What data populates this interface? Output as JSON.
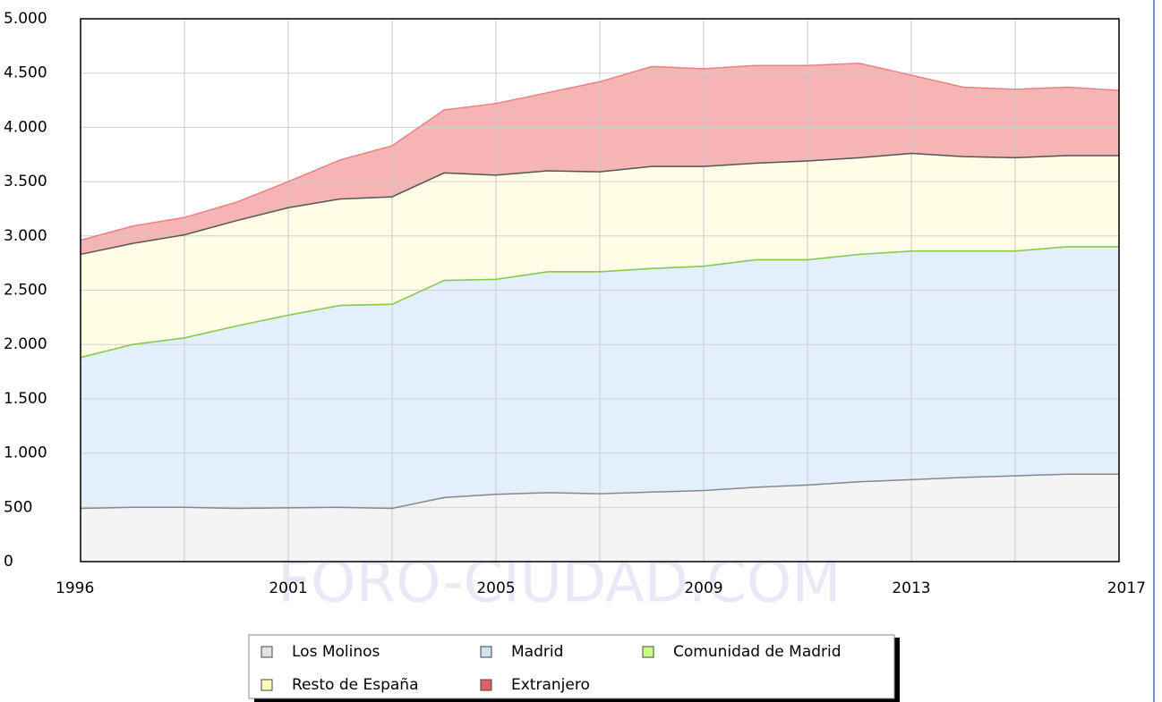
{
  "chart_data": {
    "type": "stacked_area",
    "watermark": "FORO-CIUDAD.COM",
    "categories": [
      "1996",
      null,
      null,
      null,
      "2001",
      null,
      null,
      null,
      "2005",
      null,
      null,
      null,
      "2009",
      null,
      null,
      null,
      "2013",
      null,
      null,
      null,
      "2017"
    ],
    "series": [
      {
        "name": "Los Molinos",
        "color": "#f4f4f4",
        "values": [
          490,
          500,
          500,
          490,
          495,
          500,
          490,
          590,
          620,
          635,
          625,
          640,
          655,
          685,
          705,
          735,
          755,
          775,
          790,
          805,
          805
        ]
      },
      {
        "name": "Madrid",
        "color": "#e3effd",
        "values": [
          1390,
          1500,
          1560,
          1680,
          1775,
          1860,
          1880,
          2000,
          1980,
          2035,
          2045,
          2060,
          2065,
          2095,
          2075,
          2095,
          2105,
          2085,
          2070,
          2095,
          2095
        ]
      },
      {
        "name": "Comunidad de Madrid",
        "color": "#ccff99",
        "values": [
          0,
          0,
          0,
          0,
          0,
          0,
          0,
          0,
          0,
          0,
          0,
          0,
          0,
          0,
          0,
          0,
          0,
          0,
          0,
          0,
          0
        ]
      },
      {
        "name": "Resto de España",
        "color": "#fffde6",
        "values": [
          950,
          930,
          950,
          970,
          990,
          980,
          990,
          990,
          960,
          930,
          920,
          940,
          920,
          890,
          910,
          890,
          900,
          870,
          860,
          840,
          840
        ]
      },
      {
        "name": "Extranjero",
        "color": "#f4b5b5",
        "values": [
          130,
          160,
          160,
          170,
          240,
          360,
          470,
          580,
          660,
          720,
          830,
          920,
          900,
          900,
          880,
          870,
          720,
          640,
          630,
          630,
          600
        ]
      }
    ],
    "ylim": [
      0,
      5000
    ],
    "yticks": [
      0,
      500,
      {
        "value": 1000,
        "label": "1.000"
      },
      {
        "value": 1500,
        "label": "1.500"
      },
      {
        "value": 2000,
        "label": "2.000"
      },
      {
        "value": 2500,
        "label": "2.500"
      },
      {
        "value": 3000,
        "label": "3.000"
      },
      {
        "value": 3500,
        "label": "3.500"
      },
      {
        "value": 4000,
        "label": "4.000"
      },
      {
        "value": 4500,
        "label": "4.500"
      },
      {
        "value": 5000,
        "label": "5.000"
      }
    ],
    "grid": true
  }
}
